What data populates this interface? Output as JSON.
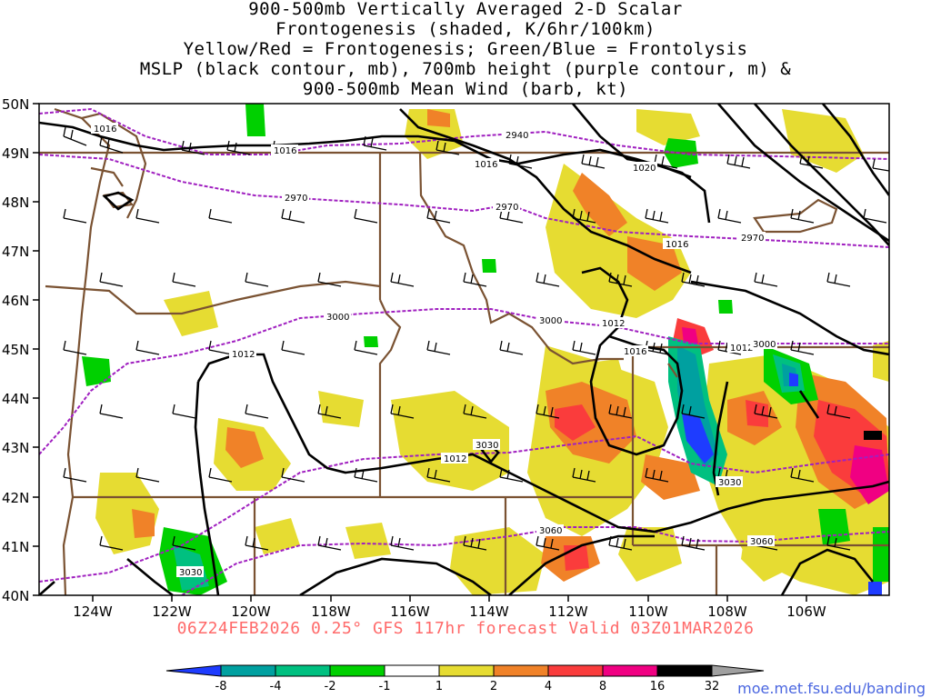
{
  "title_lines": [
    "900-500mb Vertically Averaged 2-D Scalar",
    "Frontogenesis (shaded, K/6hr/100km)",
    "Yellow/Red = Frontogenesis;  Green/Blue = Frontolysis",
    "MSLP (black contour, mb), 700mb height (purple contour, m) &",
    "900-500mb Mean Wind (barb, kt)"
  ],
  "subtitle": "06Z24FEB2026 0.25° GFS 117hr forecast Valid 03Z01MAR2026",
  "credit": "moe.met.fsu.edu/banding",
  "lat_labels": [
    "50N",
    "49N",
    "48N",
    "47N",
    "46N",
    "45N",
    "44N",
    "43N",
    "42N",
    "41N",
    "40N"
  ],
  "lon_labels": [
    "124W",
    "122W",
    "120W",
    "118W",
    "116W",
    "114W",
    "112W",
    "110W",
    "108W",
    "106W"
  ],
  "colorbar": {
    "labels": [
      "-8",
      "-4",
      "-2",
      "-1",
      "1",
      "2",
      "4",
      "8",
      "16",
      "32"
    ],
    "colors": [
      "#1e3cff",
      "#00a0a0",
      "#00c080",
      "#00d000",
      "#ffffff",
      "#e6dc32",
      "#f08228",
      "#fa3c3c",
      "#f00082",
      "#000000",
      "#a0a0a0"
    ]
  },
  "mslp_labels": [
    "1016",
    "1016",
    "1016",
    "1020",
    "1016",
    "1012",
    "1016",
    "1012",
    "1012",
    "1012"
  ],
  "height_labels": [
    "2940",
    "2970",
    "2970",
    "2970",
    "3000",
    "3000",
    "3000",
    "3030",
    "3030",
    "3030",
    "3060",
    "3060"
  ],
  "colors": {
    "mslp": "#000000",
    "height": "#a020c0",
    "borders": "#7a5232",
    "title_text": "#000000",
    "subtitle_text": "#ff6a6a",
    "credit_text": "#4a66e0"
  }
}
